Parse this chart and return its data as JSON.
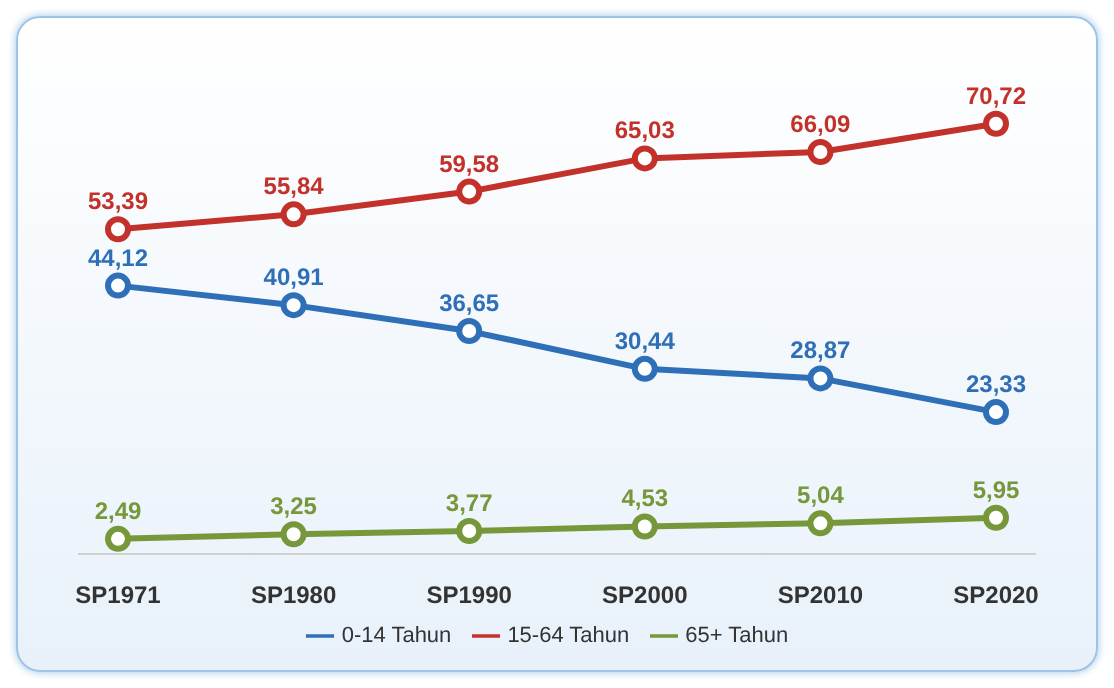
{
  "chart_data": {
    "type": "line",
    "categories": [
      "SP1971",
      "SP1980",
      "SP1990",
      "SP2000",
      "SP2010",
      "SP2020"
    ],
    "series": [
      {
        "name": "0-14 Tahun",
        "color": "#2e6fb7",
        "values": [
          44.12,
          40.91,
          36.65,
          30.44,
          28.87,
          23.33
        ],
        "value_labels": [
          "44,12",
          "40,91",
          "36,65",
          "30,44",
          "28,87",
          "23,33"
        ]
      },
      {
        "name": "15-64 Tahun",
        "color": "#c3312b",
        "values": [
          53.39,
          55.84,
          59.58,
          65.03,
          66.09,
          70.72
        ],
        "value_labels": [
          "53,39",
          "55,84",
          "59,58",
          "65,03",
          "66,09",
          "70,72"
        ]
      },
      {
        "name": "65+ Tahun",
        "color": "#76973a",
        "values": [
          2.49,
          3.25,
          3.77,
          4.53,
          5.04,
          5.95
        ],
        "value_labels": [
          "2,49",
          "3,25",
          "3,77",
          "4,53",
          "5,04",
          "5,95"
        ]
      }
    ],
    "marker": "circle",
    "line_style": "solid",
    "grid": false,
    "legend": "bottom"
  }
}
